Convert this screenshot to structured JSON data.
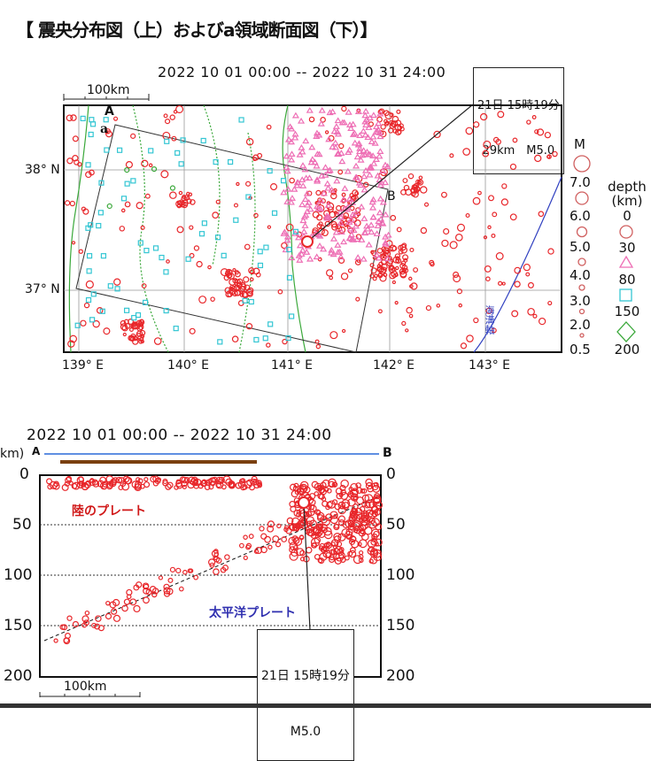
{
  "title": "【 震央分布図（上）およびa領域断面図（下）】",
  "map": {
    "period": "2022 10 01 00:00 -- 2022 10 31 24:00",
    "scale": "100km",
    "callout": {
      "line1": "21日 15時19分",
      "line2": "29km　M5.0"
    },
    "lat_ticks": [
      "38° N",
      "37° N"
    ],
    "lon_ticks": [
      "139° E",
      "140° E",
      "141° E",
      "142° E",
      "143° E"
    ],
    "label_A": "A",
    "label_B": "B",
    "label_a": "a",
    "trench": "海溝軸"
  },
  "legend": {
    "m_title": "M",
    "m_labels": [
      "7.0",
      "6.0",
      "5.0",
      "4.0",
      "3.0",
      "2.0",
      "0.5"
    ],
    "depth_title": "depth",
    "depth_unit": "(km)",
    "depth_labels": [
      "0",
      "30",
      "80",
      "150",
      "200"
    ]
  },
  "section": {
    "period": "2022 10 01 00:00 -- 2022 10 31 24:00",
    "km": "km)",
    "label_A": "A",
    "label_B": "B",
    "depth_ticks": [
      "0",
      "50",
      "100",
      "150",
      "200"
    ],
    "land_plate": "陸のプレート",
    "pacific_plate": "太平洋プレート",
    "callout": {
      "line1": "21日 15時19分",
      "line2": "M5.0"
    },
    "scale": "100km"
  },
  "colors": {
    "quake": "#e8262a",
    "pink": "#ee6fb5",
    "cyan": "#34c6d3",
    "green": "#3aa83a",
    "trench": "#3040c0"
  }
}
